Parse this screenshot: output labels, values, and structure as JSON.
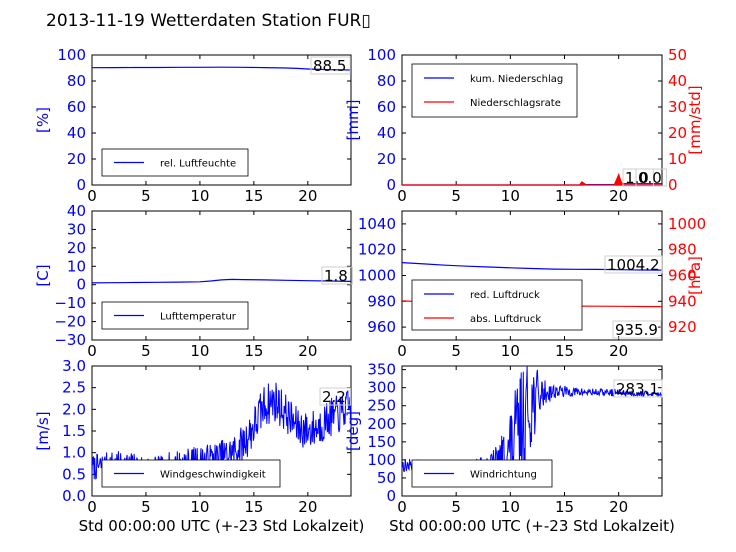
{
  "title": "2013-11-19 Wetterdaten Station FUR▯",
  "colors": {
    "primary": "#0000ff",
    "secondary": "#ff0000",
    "secondary_fill": "#ff0000",
    "light": "#7f7fff"
  },
  "chart_data": [
    {
      "id": "humidity",
      "type": "line",
      "xlim": [
        0,
        24
      ],
      "xticks": [
        0,
        5,
        10,
        15,
        20
      ],
      "ylabel": "[%]",
      "ylim": [
        0,
        100
      ],
      "yticks": [
        0,
        20,
        40,
        60,
        80,
        100
      ],
      "annotation": "88.5",
      "legend": [
        "rel. Luftfeuchte"
      ],
      "legend_position": "lower-left",
      "series": [
        {
          "name": "rel. Luftfeuchte",
          "color": "#0000ff",
          "x": [
            0,
            2,
            4,
            6,
            8,
            10,
            12,
            14,
            16,
            18,
            19,
            20,
            21,
            22,
            23,
            24
          ],
          "y": [
            90.2,
            90.3,
            90.4,
            90.4,
            90.5,
            90.5,
            90.6,
            90.5,
            90.3,
            90.0,
            89.7,
            89.2,
            88.9,
            88.7,
            88.6,
            88.5
          ]
        }
      ]
    },
    {
      "id": "precip",
      "type": "line",
      "xlim": [
        0,
        24
      ],
      "xticks": [
        0,
        5,
        10,
        15,
        20
      ],
      "ylabel": "[mm]",
      "ylim": [
        0,
        100
      ],
      "yticks": [
        0,
        20,
        40,
        60,
        80,
        100
      ],
      "y2label": "[mm/std]",
      "y2lim": [
        0,
        50
      ],
      "y2ticks": [
        0,
        10,
        20,
        30,
        40,
        50
      ],
      "annotation": "1.0",
      "annotation2": "0.0",
      "legend": [
        "kum. Niederschlag",
        "Niederschlagsrate"
      ],
      "legend_position": "upper-left",
      "series": [
        {
          "name": "kum. Niederschlag",
          "color": "#0000ff",
          "axis": "left",
          "x": [
            0,
            16.5,
            16.8,
            19.6,
            20.0,
            20.3,
            24
          ],
          "y": [
            0,
            0,
            0.3,
            0.4,
            0.8,
            1.0,
            1.0
          ]
        },
        {
          "name": "Niederschlagsrate",
          "color": "#ff0000",
          "axis": "right",
          "x": [
            0,
            16.4,
            16.6,
            16.8,
            17.0,
            19.6,
            19.8,
            20.0,
            20.2,
            20.4,
            24
          ],
          "y": [
            0,
            0,
            1.2,
            0.6,
            0,
            0,
            2.0,
            4.0,
            1.5,
            0,
            0
          ]
        }
      ]
    },
    {
      "id": "temperature",
      "type": "line",
      "xlim": [
        0,
        24
      ],
      "xticks": [
        0,
        5,
        10,
        15,
        20
      ],
      "ylabel": "[C]",
      "ylim": [
        -30,
        40
      ],
      "yticks": [
        -30,
        -20,
        -10,
        0,
        10,
        20,
        30,
        40
      ],
      "annotation": "1.8",
      "legend": [
        "Lufttemperatur"
      ],
      "legend_position": "lower-left",
      "series": [
        {
          "name": "Lufttemperatur",
          "color": "#0000ff",
          "x": [
            0,
            2,
            4,
            6,
            8,
            10,
            11,
            12,
            13,
            14,
            16,
            18,
            20,
            22,
            24
          ],
          "y": [
            1.0,
            1.1,
            1.2,
            1.3,
            1.4,
            1.6,
            2.0,
            2.6,
            2.9,
            2.8,
            2.6,
            2.4,
            2.2,
            2.0,
            1.8
          ]
        }
      ]
    },
    {
      "id": "pressure",
      "type": "line",
      "xlim": [
        0,
        24
      ],
      "xticks": [
        0,
        5,
        10,
        15,
        20
      ],
      "ylim": [
        950,
        1050
      ],
      "yticks": [
        960,
        980,
        1000,
        1020,
        1040
      ],
      "y2label": "[hPa]",
      "y2lim": [
        910,
        1010
      ],
      "y2ticks": [
        920,
        940,
        960,
        980,
        1000
      ],
      "annotation": "1004.2",
      "annotation2": "935.9",
      "legend": [
        "red. Luftdruck",
        "abs. Luftdruck"
      ],
      "legend_position": "lower-left",
      "series": [
        {
          "name": "red. Luftdruck",
          "color": "#0000ff",
          "axis": "left",
          "x": [
            0,
            2,
            4,
            6,
            8,
            10,
            12,
            14,
            16,
            18,
            20,
            22,
            24
          ],
          "y": [
            1010.0,
            1009.0,
            1008.0,
            1007.2,
            1006.6,
            1006.0,
            1005.4,
            1005.0,
            1004.8,
            1004.7,
            1004.5,
            1004.3,
            1004.2
          ]
        },
        {
          "name": "abs. Luftdruck",
          "color": "#ff0000",
          "axis": "right",
          "x": [
            0,
            2,
            4,
            6,
            8,
            10,
            12,
            14,
            16,
            18,
            20,
            22,
            24
          ],
          "y": [
            940.3,
            939.6,
            938.8,
            938.2,
            937.7,
            937.2,
            936.8,
            936.5,
            936.3,
            936.2,
            936.1,
            936.0,
            935.9
          ]
        }
      ]
    },
    {
      "id": "wind_speed",
      "type": "line",
      "xlim": [
        0,
        24
      ],
      "xticks": [
        0,
        5,
        10,
        15,
        20
      ],
      "xlabel": "Std 00:00:00 UTC (+-23 Std Lokalzeit)",
      "ylabel": "[m/s]",
      "ylim": [
        0,
        3.0
      ],
      "yticks": [
        0.0,
        0.5,
        1.0,
        1.5,
        2.0,
        2.5,
        3.0
      ],
      "annotation": "2.2",
      "legend": [
        "Windgeschwindigkeit"
      ],
      "legend_position": "lower-left",
      "noise": {
        "color": "#0000ff",
        "seed": 7,
        "step": 0.05,
        "x": [
          0,
          2,
          4,
          6,
          8,
          10,
          12,
          13,
          14,
          15,
          16,
          17,
          18,
          19,
          20,
          21,
          22,
          23,
          24
        ],
        "base": [
          0.65,
          0.75,
          0.7,
          0.6,
          0.75,
          0.8,
          0.9,
          1.0,
          1.2,
          1.6,
          2.1,
          2.2,
          1.9,
          1.6,
          1.5,
          1.6,
          1.8,
          1.9,
          2.1
        ],
        "amp": [
          0.3,
          0.3,
          0.3,
          0.3,
          0.35,
          0.35,
          0.4,
          0.4,
          0.45,
          0.5,
          0.5,
          0.5,
          0.45,
          0.45,
          0.45,
          0.45,
          0.45,
          0.45,
          0.4
        ]
      }
    },
    {
      "id": "wind_dir",
      "type": "line",
      "xlim": [
        0,
        24
      ],
      "xticks": [
        0,
        5,
        10,
        15,
        20
      ],
      "xlabel": "Std 00:00:00 UTC (+-23 Std Lokalzeit)",
      "ylabel": "[deg]",
      "ylim": [
        0,
        360
      ],
      "yticks": [
        0,
        50,
        100,
        150,
        200,
        250,
        300,
        350
      ],
      "annotation": "283.1",
      "legend": [
        "Windrichtung"
      ],
      "legend_position": "lower-left",
      "noise": {
        "color": "#0000ff",
        "seed": 13,
        "step": 0.05,
        "x": [
          0,
          2,
          4,
          6,
          8,
          9,
          10,
          11,
          12,
          13,
          14,
          16,
          18,
          20,
          22,
          24
        ],
        "base": [
          85,
          80,
          80,
          80,
          85,
          95,
          130,
          200,
          260,
          285,
          290,
          288,
          287,
          286,
          284,
          283
        ],
        "amp": [
          20,
          20,
          20,
          20,
          25,
          60,
          120,
          150,
          120,
          40,
          20,
          12,
          10,
          10,
          8,
          6
        ]
      }
    }
  ]
}
